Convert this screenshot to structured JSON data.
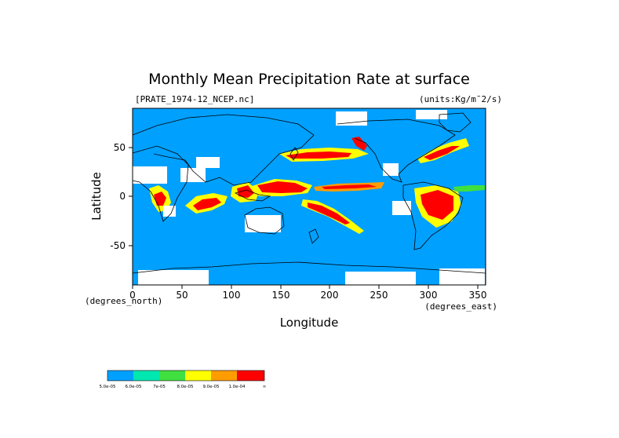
{
  "figure": {
    "title": "Monthly Mean Precipitation Rate at surface",
    "file_label": "[PRATE_1974-12_NCEP.nc]",
    "units_label": "(units:Kg/m¯2/s)",
    "xlabel": "Longitude",
    "ylabel": "Latitude",
    "x_unit_note": "(degrees_east)",
    "y_unit_note": "(degrees_north)"
  },
  "chart_data": {
    "type": "heatmap",
    "title": "Monthly Mean Precipitation Rate at surface",
    "xlabel": "Longitude",
    "ylabel": "Latitude",
    "x_ticks": [
      0,
      50,
      100,
      150,
      200,
      250,
      300,
      350
    ],
    "y_ticks": [
      50,
      0,
      -50
    ],
    "xlim": [
      0,
      357.5
    ],
    "ylim": [
      -90,
      90
    ],
    "grid": false,
    "colorbar": {
      "colors": [
        "#00a0ff",
        "#00e8b0",
        "#40e040",
        "#ffff00",
        "#ff9c00",
        "#ff0000"
      ],
      "labels": [
        "5.0e-05",
        "6.0e-05",
        "7e-05",
        "8.0e-05",
        "9.0e-05",
        "1.0e-04",
        "∞"
      ]
    },
    "masked_color": "#ffffff",
    "background_color": "#00a0ff"
  }
}
